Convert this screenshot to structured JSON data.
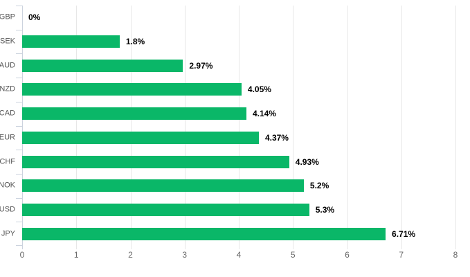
{
  "chart_data": {
    "type": "bar",
    "orientation": "horizontal",
    "title": "",
    "xlabel": "",
    "ylabel": "",
    "categories": [
      "GBP",
      "SEK",
      "AUD",
      "NZD",
      "CAD",
      "EUR",
      "CHF",
      "NOK",
      "USD",
      "JPY"
    ],
    "values": [
      0,
      1.8,
      2.97,
      4.05,
      4.14,
      4.37,
      4.93,
      5.2,
      5.3,
      6.71
    ],
    "value_labels": [
      "0%",
      "1.8%",
      "2.97%",
      "4.05%",
      "4.14%",
      "4.37%",
      "4.93%",
      "5.2%",
      "5.3%",
      "6.71%"
    ],
    "x_ticks": [
      "0",
      "1",
      "2",
      "3",
      "4",
      "5",
      "6",
      "7",
      "8"
    ],
    "xlim": [
      0,
      8
    ],
    "grid": true,
    "legend": false,
    "colors": {
      "bar": "#0ab768",
      "gridline": "#e7e7e7",
      "axis_line": "#ccd3de",
      "boundary_tick": "#ccd3de",
      "category_label": "#555555",
      "axis_label": "#666666",
      "value_label": "#000000",
      "background": "#ffffff"
    }
  }
}
